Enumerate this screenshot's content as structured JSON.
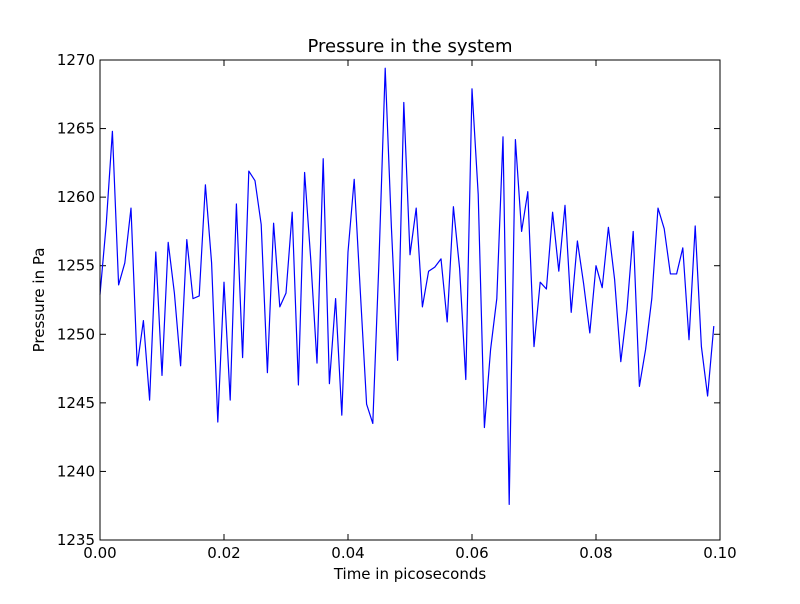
{
  "chart_data": {
    "type": "line",
    "title": "Pressure in the system",
    "xlabel": "Time in picoseconds",
    "ylabel": "Pressure in Pa",
    "xlim": [
      0.0,
      0.1
    ],
    "ylim": [
      1235,
      1270
    ],
    "grid": false,
    "legend": "none",
    "xticks": [
      "0.00",
      "0.02",
      "0.04",
      "0.06",
      "0.08",
      "0.10"
    ],
    "yticks": [
      "1235",
      "1240",
      "1245",
      "1250",
      "1255",
      "1260",
      "1265",
      "1270"
    ],
    "line_color": "#0000ff",
    "series": [
      {
        "x": [
          0.0,
          0.001,
          0.002,
          0.003,
          0.004,
          0.005,
          0.006,
          0.007,
          0.008,
          0.009,
          0.01,
          0.011,
          0.012,
          0.013,
          0.014,
          0.015,
          0.016,
          0.017,
          0.018,
          0.019,
          0.02,
          0.021,
          0.022,
          0.023,
          0.024,
          0.025,
          0.026,
          0.027,
          0.028,
          0.029,
          0.03,
          0.031,
          0.032,
          0.033,
          0.034,
          0.035,
          0.036,
          0.037,
          0.038,
          0.039,
          0.04,
          0.041,
          0.042,
          0.043,
          0.044,
          0.045,
          0.046,
          0.047,
          0.048,
          0.049,
          0.05,
          0.051,
          0.052,
          0.053,
          0.054,
          0.055,
          0.056,
          0.057,
          0.058,
          0.059,
          0.06,
          0.061,
          0.062,
          0.063,
          0.064,
          0.065,
          0.066,
          0.067,
          0.068,
          0.069,
          0.07,
          0.071,
          0.072,
          0.073,
          0.074,
          0.075,
          0.076,
          0.077,
          0.078,
          0.079,
          0.08,
          0.081,
          0.082,
          0.083,
          0.084,
          0.085,
          0.086,
          0.087,
          0.088,
          0.089,
          0.09,
          0.091,
          0.092,
          0.093,
          0.094,
          0.095,
          0.096,
          0.097,
          0.098,
          0.099
        ],
        "y": [
          1252.9,
          1258.0,
          1264.8,
          1253.6,
          1255.2,
          1259.2,
          1247.7,
          1251.0,
          1245.2,
          1256.0,
          1247.0,
          1256.7,
          1253.0,
          1247.7,
          1256.9,
          1252.6,
          1252.8,
          1260.9,
          1255.2,
          1243.6,
          1253.8,
          1245.2,
          1259.5,
          1248.3,
          1261.9,
          1261.2,
          1258.0,
          1247.2,
          1258.1,
          1252.0,
          1253.0,
          1258.9,
          1246.3,
          1261.8,
          1255.4,
          1247.9,
          1262.8,
          1246.4,
          1252.6,
          1244.1,
          1256.0,
          1261.3,
          1253.0,
          1244.9,
          1243.5,
          1255.4,
          1269.4,
          1257.8,
          1248.1,
          1266.9,
          1255.8,
          1259.2,
          1252.0,
          1254.6,
          1254.9,
          1255.5,
          1250.9,
          1259.3,
          1254.8,
          1246.7,
          1267.9,
          1260.2,
          1243.2,
          1248.9,
          1252.6,
          1264.4,
          1237.6,
          1264.2,
          1257.5,
          1260.4,
          1249.1,
          1253.8,
          1253.3,
          1258.9,
          1254.6,
          1259.4,
          1251.6,
          1256.8,
          1253.7,
          1250.1,
          1255.0,
          1253.4,
          1257.8,
          1254.0,
          1248.0,
          1251.8,
          1257.5,
          1246.2,
          1248.9,
          1252.6,
          1259.2,
          1257.7,
          1254.4,
          1254.4,
          1256.3,
          1249.6,
          1257.9,
          1249.1,
          1245.5,
          1250.6
        ]
      }
    ]
  }
}
